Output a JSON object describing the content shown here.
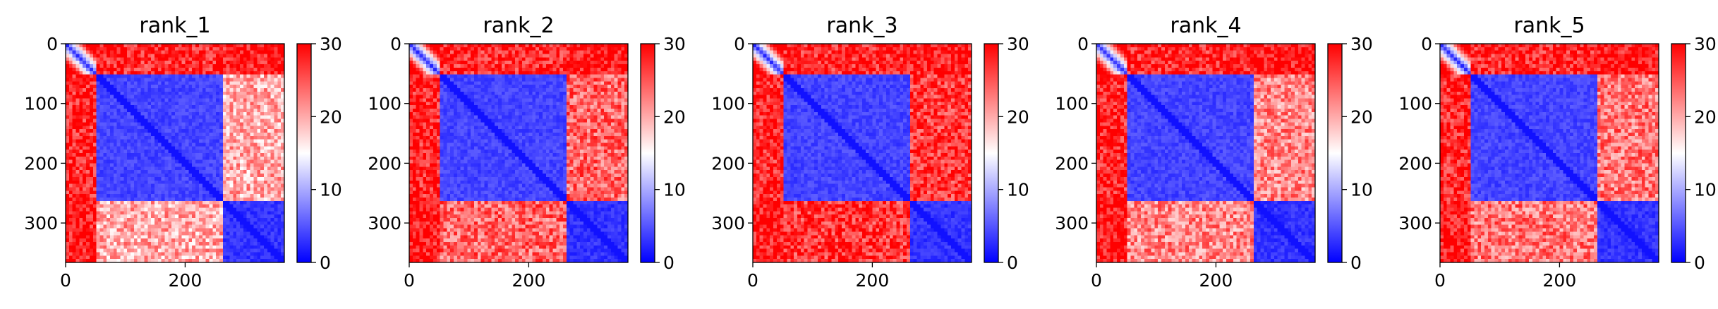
{
  "chart_data": [
    {
      "type": "heatmap",
      "title": "rank_1",
      "xlim": [
        0,
        366
      ],
      "ylim": [
        366,
        0
      ],
      "xticks": [
        0,
        200
      ],
      "yticks": [
        0,
        100,
        200,
        300
      ],
      "colorbar": {
        "range": [
          0,
          30
        ],
        "ticks": [
          0,
          10,
          20,
          30
        ],
        "colormap": "bwr"
      },
      "domains": [
        [
          0,
          50
        ],
        [
          50,
          263
        ],
        [
          263,
          366
        ]
      ],
      "block_values": [
        [
          3,
          28,
          29
        ],
        [
          28,
          4,
          20
        ],
        [
          29,
          20,
          3
        ]
      ]
    },
    {
      "type": "heatmap",
      "title": "rank_2",
      "xlim": [
        0,
        366
      ],
      "ylim": [
        366,
        0
      ],
      "xticks": [
        0,
        200
      ],
      "yticks": [
        0,
        100,
        200,
        300
      ],
      "colorbar": {
        "range": [
          0,
          30
        ],
        "ticks": [
          0,
          10,
          20,
          30
        ],
        "colormap": "bwr"
      },
      "domains": [
        [
          0,
          50
        ],
        [
          50,
          263
        ],
        [
          263,
          366
        ]
      ],
      "block_values": [
        [
          3,
          28,
          29
        ],
        [
          28,
          4,
          24
        ],
        [
          29,
          24,
          3
        ]
      ]
    },
    {
      "type": "heatmap",
      "title": "rank_3",
      "xlim": [
        0,
        366
      ],
      "ylim": [
        366,
        0
      ],
      "xticks": [
        0,
        200
      ],
      "yticks": [
        0,
        100,
        200,
        300
      ],
      "colorbar": {
        "range": [
          0,
          30
        ],
        "ticks": [
          0,
          10,
          20,
          30
        ],
        "colormap": "bwr"
      },
      "domains": [
        [
          0,
          50
        ],
        [
          50,
          263
        ],
        [
          263,
          366
        ]
      ],
      "block_values": [
        [
          3,
          28,
          29
        ],
        [
          28,
          4,
          27
        ],
        [
          29,
          27,
          3
        ]
      ]
    },
    {
      "type": "heatmap",
      "title": "rank_4",
      "xlim": [
        0,
        366
      ],
      "ylim": [
        366,
        0
      ],
      "xticks": [
        0,
        200
      ],
      "yticks": [
        0,
        100,
        200,
        300
      ],
      "colorbar": {
        "range": [
          0,
          30
        ],
        "ticks": [
          0,
          10,
          20,
          30
        ],
        "colormap": "bwr"
      },
      "domains": [
        [
          0,
          50
        ],
        [
          50,
          263
        ],
        [
          263,
          366
        ]
      ],
      "block_values": [
        [
          3,
          28,
          29
        ],
        [
          28,
          4,
          22
        ],
        [
          29,
          22,
          3
        ]
      ]
    },
    {
      "type": "heatmap",
      "title": "rank_5",
      "xlim": [
        0,
        366
      ],
      "ylim": [
        366,
        0
      ],
      "xticks": [
        0,
        200
      ],
      "yticks": [
        0,
        100,
        200,
        300
      ],
      "colorbar": {
        "range": [
          0,
          30
        ],
        "ticks": [
          0,
          10,
          20,
          30
        ],
        "colormap": "bwr"
      },
      "domains": [
        [
          0,
          50
        ],
        [
          50,
          263
        ],
        [
          263,
          366
        ]
      ],
      "block_values": [
        [
          3,
          28,
          29
        ],
        [
          28,
          4,
          23
        ],
        [
          29,
          23,
          3
        ]
      ]
    }
  ]
}
